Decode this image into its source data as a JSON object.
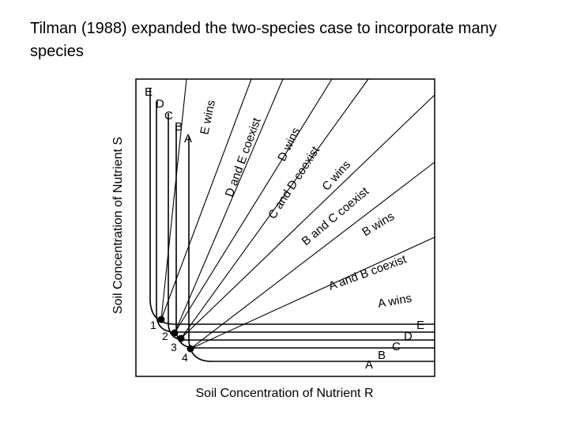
{
  "title": "Tilman (1988) expanded the two-species case to incorporate many species",
  "diagram": {
    "y_axis_label": "Soil Concentration of Nutrient S",
    "x_axis_label": "Soil Concentration of Nutrient R",
    "isocline_labels_top": [
      "E",
      "D",
      "C",
      "B",
      "A"
    ],
    "isocline_labels_right": [
      "E",
      "D",
      "C",
      "B",
      "A"
    ],
    "equilibrium_points": [
      "1",
      "2",
      "3",
      "4"
    ],
    "regions": [
      "E wins",
      "D and E coexist",
      "D wins",
      "C and D coexist",
      "C wins",
      "B and C coexist",
      "B wins",
      "A and B coexist",
      "A wins"
    ]
  }
}
